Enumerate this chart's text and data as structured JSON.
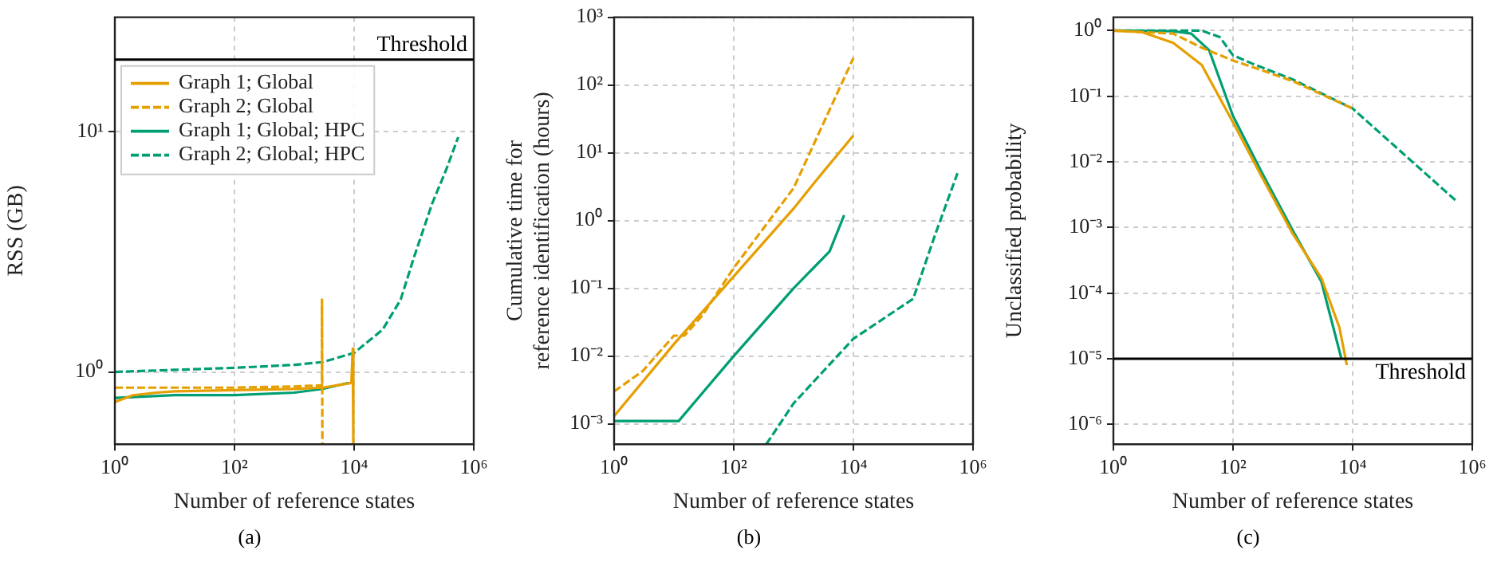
{
  "chart_data": [
    {
      "type": "line",
      "xlabel": "Number of reference states",
      "ylabel": "RSS (GB)",
      "log": "xy",
      "grid": true,
      "legend": "top left",
      "marker": "none",
      "annotations": [
        "(a)"
      ],
      "xlim": [
        1,
        1000000
      ],
      "ylim": [
        0.5,
        30
      ],
      "xticks": [
        {
          "value": 1,
          "label": "10⁰"
        },
        {
          "value": 100,
          "label": "10²"
        },
        {
          "value": 10000,
          "label": "10⁴"
        },
        {
          "value": 1000000,
          "label": "10⁶"
        }
      ],
      "yticks": [
        {
          "value": 1,
          "label": "10⁰"
        },
        {
          "value": 10,
          "label": "10¹"
        }
      ],
      "ref_lines": [
        {
          "axis": "y",
          "value": 20,
          "label": "Threshold"
        }
      ],
      "series": [
        {
          "name": "Graph 1; Global",
          "color": "#e69f00",
          "line_style": "solid",
          "x": [
            1,
            2,
            5,
            10,
            100,
            1000,
            3000,
            9000,
            9500,
            9700
          ],
          "values": [
            0.75,
            0.8,
            0.82,
            0.83,
            0.84,
            0.85,
            0.86,
            0.9,
            1.25,
            0.5
          ]
        },
        {
          "name": "Graph 2; Global",
          "color": "#e69f00",
          "line_style": "dashed",
          "x": [
            1,
            10,
            100,
            1000,
            2900,
            2900,
            2950
          ],
          "values": [
            0.86,
            0.86,
            0.86,
            0.87,
            0.88,
            2.0,
            0.5
          ]
        },
        {
          "name": "Graph 1; Global; HPC",
          "color": "#009e73",
          "line_style": "solid",
          "x": [
            1,
            10,
            100,
            1000,
            3000,
            8000
          ],
          "values": [
            0.78,
            0.8,
            0.8,
            0.82,
            0.85,
            0.9
          ]
        },
        {
          "name": "Graph 2; Global; HPC",
          "color": "#009e73",
          "line_style": "dashed",
          "x": [
            1,
            10,
            100,
            1000,
            3000,
            10000,
            30000,
            60000,
            100000,
            200000,
            350000,
            550000
          ],
          "values": [
            1.0,
            1.02,
            1.04,
            1.07,
            1.1,
            1.2,
            1.5,
            2.0,
            3.0,
            5.0,
            7.0,
            9.5
          ]
        }
      ]
    },
    {
      "type": "line",
      "xlabel": "Number of reference states",
      "ylabel": "Cumulative time for reference identification (hours)",
      "log": "xy",
      "grid": true,
      "marker": "none",
      "annotations": [
        "(b)"
      ],
      "xlim": [
        1,
        1000000
      ],
      "ylim": [
        0.0005,
        1000
      ],
      "xticks": [
        {
          "value": 1,
          "label": "10⁰"
        },
        {
          "value": 100,
          "label": "10²"
        },
        {
          "value": 10000,
          "label": "10⁴"
        },
        {
          "value": 1000000,
          "label": "10⁶"
        }
      ],
      "yticks": [
        {
          "value": 0.001,
          "label": "10⁻³"
        },
        {
          "value": 0.01,
          "label": "10⁻²"
        },
        {
          "value": 0.1,
          "label": "10⁻¹"
        },
        {
          "value": 1,
          "label": "10⁰"
        },
        {
          "value": 10,
          "label": "10¹"
        },
        {
          "value": 100,
          "label": "10²"
        },
        {
          "value": 1000,
          "label": "10³"
        }
      ],
      "series": [
        {
          "color": "#e69f00",
          "line_style": "solid",
          "x": [
            1,
            10,
            100,
            1000,
            3000,
            10000
          ],
          "values": [
            0.0013,
            0.015,
            0.15,
            1.5,
            5,
            18
          ]
        },
        {
          "color": "#e69f00",
          "line_style": "dashed",
          "x": [
            1,
            3,
            5,
            10,
            15,
            30,
            100,
            1000,
            10000
          ],
          "values": [
            0.003,
            0.006,
            0.01,
            0.02,
            0.02,
            0.04,
            0.2,
            3,
            250
          ]
        },
        {
          "color": "#009e73",
          "line_style": "solid",
          "x": [
            1,
            12,
            100,
            1000,
            4000,
            7000
          ],
          "values": [
            0.0011,
            0.0011,
            0.01,
            0.1,
            0.35,
            1.2
          ]
        },
        {
          "color": "#009e73",
          "line_style": "dashed",
          "x": [
            350,
            1000,
            10000,
            100000,
            230000,
            550000
          ],
          "values": [
            0.0005,
            0.002,
            0.018,
            0.07,
            0.6,
            5
          ]
        }
      ]
    },
    {
      "type": "line",
      "xlabel": "Number of reference states",
      "ylabel": "Unclassified probability",
      "log": "xy",
      "grid": true,
      "marker": "none",
      "annotations": [
        "(c)"
      ],
      "xlim": [
        1,
        1000000
      ],
      "ylim": [
        5e-07,
        1.6
      ],
      "xticks": [
        {
          "value": 1,
          "label": "10⁰"
        },
        {
          "value": 100,
          "label": "10²"
        },
        {
          "value": 10000,
          "label": "10⁴"
        },
        {
          "value": 1000000,
          "label": "10⁶"
        }
      ],
      "yticks": [
        {
          "value": 1e-06,
          "label": "10⁻⁶"
        },
        {
          "value": 1e-05,
          "label": "10⁻⁵"
        },
        {
          "value": 0.0001,
          "label": "10⁻⁴"
        },
        {
          "value": 0.001,
          "label": "10⁻³"
        },
        {
          "value": 0.01,
          "label": "10⁻²"
        },
        {
          "value": 0.1,
          "label": "10⁻¹"
        },
        {
          "value": 1,
          "label": "10⁰"
        }
      ],
      "ref_lines": [
        {
          "axis": "y",
          "value": 1e-05,
          "label": "Threshold"
        }
      ],
      "series": [
        {
          "color": "#e69f00",
          "line_style": "solid",
          "x": [
            1,
            3,
            10,
            30,
            100,
            300,
            1000,
            3000,
            6000,
            8000
          ],
          "values": [
            1,
            0.95,
            0.65,
            0.3,
            0.04,
            0.006,
            0.0008,
            0.00017,
            3e-05,
            8e-06
          ]
        },
        {
          "color": "#e69f00",
          "line_style": "dashed",
          "x": [
            1,
            10,
            30,
            100,
            300,
            1000,
            10000
          ],
          "values": [
            1,
            0.9,
            0.55,
            0.35,
            0.25,
            0.17,
            0.065
          ]
        },
        {
          "color": "#009e73",
          "line_style": "solid",
          "x": [
            1,
            10,
            20,
            40,
            100,
            300,
            1000,
            3000,
            6500
          ],
          "values": [
            1,
            0.98,
            0.9,
            0.5,
            0.05,
            0.007,
            0.0009,
            0.00015,
            1e-05
          ]
        },
        {
          "color": "#009e73",
          "line_style": "dashed",
          "x": [
            1,
            30,
            60,
            100,
            200,
            1000,
            10000,
            100000,
            550000
          ],
          "values": [
            1,
            1,
            0.8,
            0.42,
            0.32,
            0.18,
            0.065,
            0.01,
            0.0025
          ]
        }
      ]
    }
  ]
}
